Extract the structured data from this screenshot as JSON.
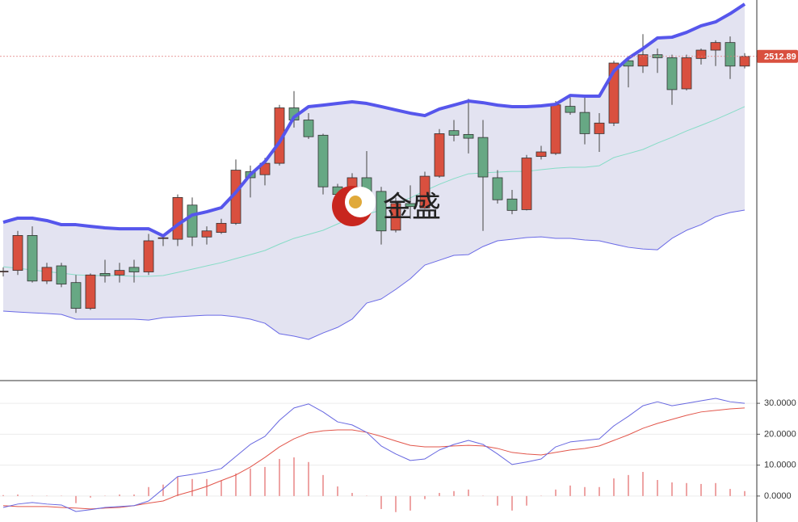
{
  "watermark": "金盛",
  "chart_data": [
    {
      "type": "candlestick",
      "ylim": [
        2300,
        2550
      ],
      "last_price": 2512.89,
      "up_color": "#d9503f",
      "down_color": "#67a884",
      "band_fill": "#e3e3f1",
      "upper_color": "#5656ec",
      "middle_color": "#86dcc6",
      "lower_color": "#6a6ae6",
      "open": [
        2371,
        2372,
        2395,
        2365,
        2375,
        2364,
        2347,
        2370,
        2369,
        2374,
        2371,
        2393,
        2392.5,
        2415,
        2394,
        2397,
        2403,
        2437,
        2435,
        2442.5,
        2479,
        2471,
        2461,
        2427,
        2421,
        2433,
        2424,
        2398.5,
        2416,
        2413,
        2434,
        2464,
        2461.5,
        2459.5,
        2433,
        2419,
        2412,
        2447,
        2449,
        2480,
        2476,
        2462,
        2469,
        2510,
        2506.5,
        2514,
        2512,
        2491.5,
        2511.5,
        2517,
        2522,
        2506.5
      ],
      "high": [
        2374,
        2398,
        2401,
        2377,
        2377,
        2369,
        2370,
        2379,
        2377,
        2379,
        2396,
        2396,
        2422,
        2420,
        2401,
        2406,
        2445,
        2441,
        2446,
        2481,
        2490,
        2475.5,
        2462,
        2429,
        2436,
        2450.5,
        2427,
        2420,
        2428,
        2437,
        2465,
        2471,
        2485,
        2471,
        2438,
        2425,
        2448,
        2454,
        2483.5,
        2486,
        2486,
        2475.5,
        2510,
        2513,
        2527.5,
        2518,
        2514,
        2514,
        2518,
        2523.5,
        2526,
        2515
      ],
      "low": [
        2368,
        2369,
        2364,
        2363,
        2361,
        2344,
        2346,
        2364,
        2364,
        2364,
        2369,
        2388,
        2388,
        2388,
        2389,
        2396,
        2402,
        2420,
        2428,
        2441,
        2466,
        2458.5,
        2422,
        2414,
        2417,
        2420,
        2389,
        2397,
        2406,
        2412.5,
        2433,
        2457,
        2449,
        2398,
        2416,
        2409,
        2411.5,
        2445,
        2448,
        2474.5,
        2455,
        2450,
        2467,
        2492.5,
        2502,
        2502,
        2481,
        2490.5,
        2507.5,
        2506.5,
        2498,
        2505
      ],
      "close": [
        2371.5,
        2395,
        2365,
        2374,
        2363,
        2347,
        2369,
        2368.5,
        2372,
        2371,
        2391.5,
        2393.5,
        2420,
        2394,
        2398,
        2403,
        2438,
        2433,
        2442.5,
        2479,
        2471,
        2460,
        2427,
        2422,
        2433,
        2423,
        2398,
        2416,
        2414,
        2434,
        2462,
        2461,
        2459,
        2433.5,
        2418.5,
        2411.5,
        2446,
        2450,
        2481,
        2476,
        2462,
        2469,
        2508.5,
        2506.5,
        2514,
        2512,
        2491,
        2512,
        2517,
        2522,
        2506.5,
        2512.89
      ],
      "upper": [
        2403.7,
        2406.4,
        2406.4,
        2404.8,
        2402.1,
        2402.1,
        2401,
        2400,
        2399.4,
        2399.4,
        2399.4,
        2394.7,
        2402.1,
        2408.5,
        2410.6,
        2413.3,
        2423.4,
        2435.1,
        2443.6,
        2456.4,
        2472.9,
        2479.8,
        2480.8,
        2481.9,
        2483,
        2481.9,
        2479.8,
        2477.6,
        2475.5,
        2473.9,
        2478.2,
        2480.8,
        2483.5,
        2482.4,
        2480.8,
        2479.8,
        2479.8,
        2480.3,
        2481.4,
        2487.2,
        2486.7,
        2486.7,
        2503.2,
        2511.7,
        2518,
        2525,
        2525.5,
        2528.7,
        2533,
        2535.6,
        2541,
        2547.3
      ],
      "middle": [
        2374.4,
        2373.4,
        2372.3,
        2371.2,
        2370.2,
        2369.1,
        2368.6,
        2368.6,
        2368.6,
        2368.1,
        2368.1,
        2368.6,
        2370.7,
        2372.8,
        2375,
        2377.1,
        2379.8,
        2382.4,
        2385.1,
        2389.3,
        2393.1,
        2395.7,
        2398.4,
        2402.6,
        2406.4,
        2409,
        2411.7,
        2415.9,
        2419.7,
        2424.4,
        2428.7,
        2432.4,
        2435.6,
        2436.2,
        2436.7,
        2437.2,
        2437.2,
        2438.3,
        2439.3,
        2439.9,
        2439.9,
        2440.9,
        2446.3,
        2448.9,
        2451.6,
        2455.8,
        2459.6,
        2463.8,
        2467.5,
        2471.3,
        2475.5,
        2479.8
      ],
      "lower": [
        2345.2,
        2344.6,
        2344.1,
        2343.6,
        2343,
        2339.9,
        2339.9,
        2339.9,
        2339.9,
        2339.9,
        2339.3,
        2340.9,
        2341.5,
        2342,
        2342.5,
        2342.5,
        2341.5,
        2339.9,
        2337.2,
        2330.3,
        2328.7,
        2326.6,
        2330.8,
        2334.5,
        2339.9,
        2350.5,
        2353.2,
        2359.5,
        2366.5,
        2375.5,
        2378.7,
        2381.9,
        2382.4,
        2387.7,
        2391.5,
        2392.5,
        2393.6,
        2394.1,
        2393.1,
        2393.1,
        2392,
        2391.5,
        2389.3,
        2387.2,
        2386.1,
        2385.6,
        2393.1,
        2398.4,
        2402.1,
        2407.4,
        2410.1,
        2411.7
      ]
    },
    {
      "type": "macd",
      "ylim": [
        -8.4,
        36.3
      ],
      "yticks": [
        {
          "value": 0,
          "label": "0.0000"
        },
        {
          "value": 10,
          "label": "10.0000"
        },
        {
          "value": 20,
          "label": "20.0000"
        },
        {
          "value": 30,
          "label": "30.0000"
        }
      ],
      "grid": true,
      "dif_color": "#6767e0",
      "dea_color": "#e2564b",
      "hist_color": "#e98585",
      "dif": [
        -3.7,
        -2.6,
        -2.1,
        -2.6,
        -2.9,
        -5,
        -4.4,
        -3.7,
        -3.4,
        -3.1,
        -1.6,
        2.3,
        6.3,
        7,
        7.8,
        8.9,
        12.8,
        16.7,
        19.3,
        24.5,
        28.5,
        29.8,
        27.2,
        24,
        23,
        20.6,
        16.2,
        13.6,
        11.5,
        12,
        14.9,
        16.7,
        18,
        16.7,
        13.6,
        10.2,
        11,
        12,
        15.9,
        17.5,
        18,
        18.5,
        22.7,
        25.8,
        29.2,
        30.5,
        29.2,
        30,
        30.8,
        31.6,
        30.5,
        30
      ],
      "dea": [
        -3.1,
        -3.4,
        -3.4,
        -3.4,
        -3.7,
        -3.9,
        -4.2,
        -3.9,
        -3.7,
        -3.1,
        -2.3,
        -1.6,
        0.3,
        1.6,
        3.1,
        5,
        6.8,
        9.4,
        12.5,
        15.9,
        18.5,
        20.4,
        21.1,
        21.4,
        21.4,
        20.6,
        19.3,
        17.8,
        16.4,
        15.9,
        15.9,
        16.2,
        16.4,
        16.2,
        15.4,
        14.1,
        13.6,
        13.3,
        14.1,
        14.9,
        15.4,
        16.2,
        18,
        19.8,
        21.9,
        23.5,
        24.8,
        26.1,
        27.2,
        27.7,
        28.2,
        28.5
      ],
      "hist": [
        0.3,
        0.5,
        0.1,
        0.1,
        0.1,
        -2.3,
        -0.5,
        0.1,
        0.5,
        0.5,
        2.9,
        3.7,
        6.3,
        5.5,
        5.5,
        5,
        7.3,
        8.9,
        9.4,
        12,
        12.5,
        11,
        6.8,
        3.1,
        1,
        0.1,
        -4.2,
        -5.2,
        -4.7,
        -1,
        1,
        1.6,
        2.1,
        0.1,
        -3.1,
        -4.7,
        -3.1,
        0.1,
        2.1,
        3.4,
        2.9,
        2.9,
        5.7,
        6.8,
        7.8,
        5.2,
        4.4,
        4.2,
        3.9,
        4.2,
        2.3,
        1.6
      ]
    }
  ]
}
